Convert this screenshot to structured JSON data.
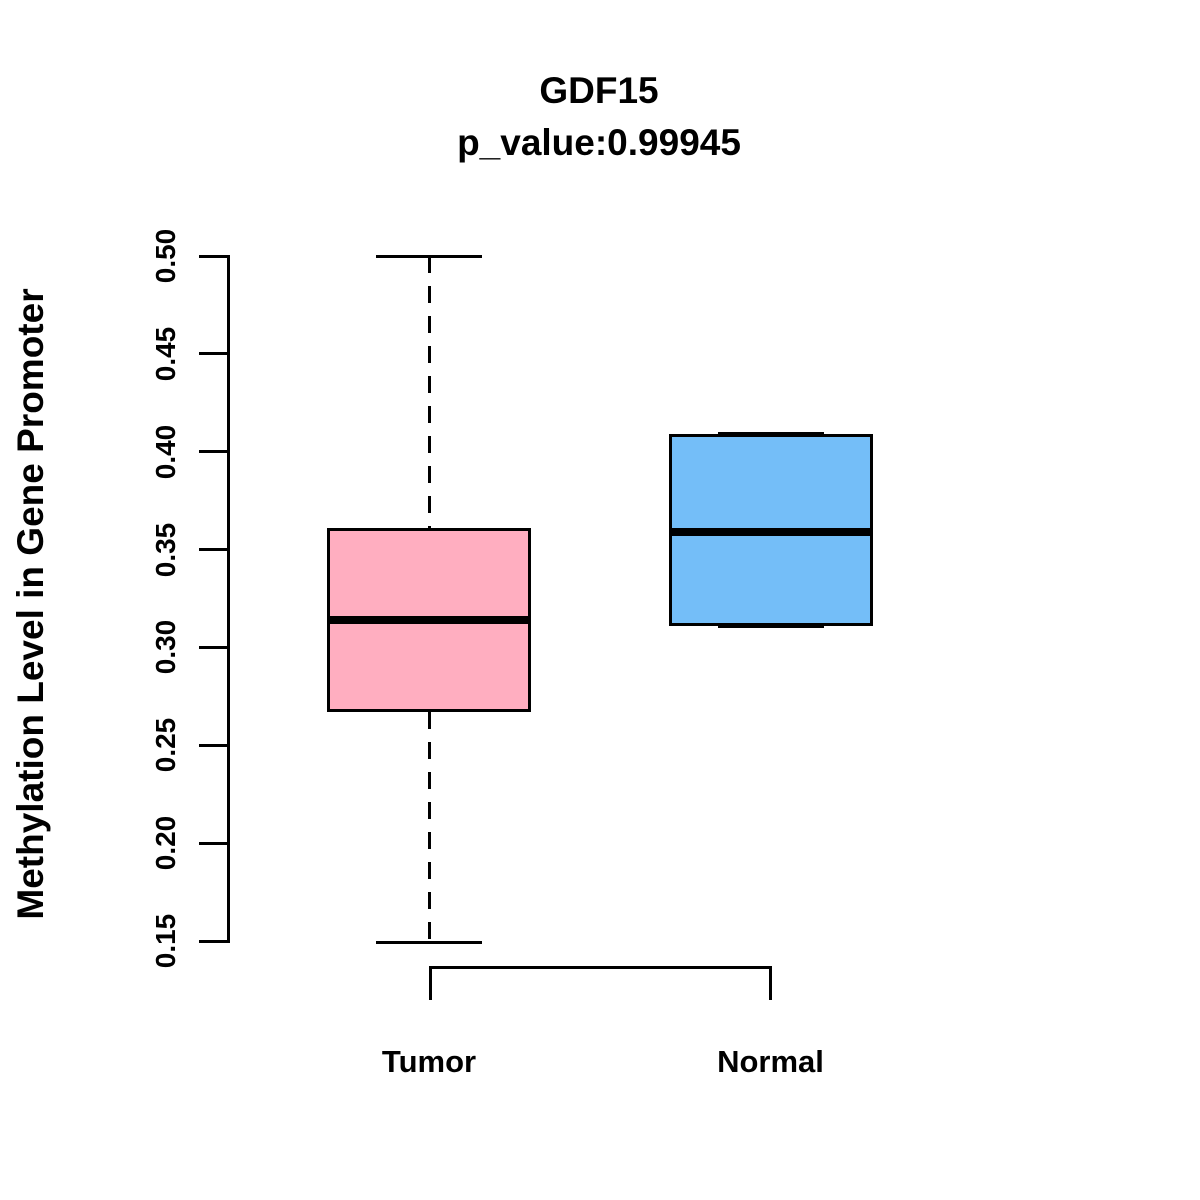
{
  "chart_data": {
    "type": "boxplot",
    "title": "GDF15",
    "subtitle": "p_value:0.99945",
    "ylabel": "Methylation Level in Gene Promoter",
    "xlabel": "",
    "ylim": [
      0.15,
      0.5
    ],
    "yticks": [
      "0.15",
      "0.20",
      "0.25",
      "0.30",
      "0.35",
      "0.40",
      "0.45",
      "0.50"
    ],
    "categories": [
      "Tumor",
      "Normal"
    ],
    "grid": false,
    "legend": "none",
    "axis_color": "#000000",
    "background_color": "#FFFFFF",
    "series": [
      {
        "name": "Tumor",
        "fill_color": "#FFAEC0",
        "border_color": "#000000",
        "whisker_low": 0.149,
        "q1": 0.267,
        "median": 0.314,
        "q3": 0.361,
        "whisker_high": 0.5,
        "whisker_style": "dashed"
      },
      {
        "name": "Normal",
        "fill_color": "#74BEF8",
        "border_color": "#000000",
        "whisker_low": 0.311,
        "q1": 0.311,
        "median": 0.359,
        "q3": 0.409,
        "whisker_high": 0.409,
        "whisker_style": "dashed"
      }
    ]
  }
}
